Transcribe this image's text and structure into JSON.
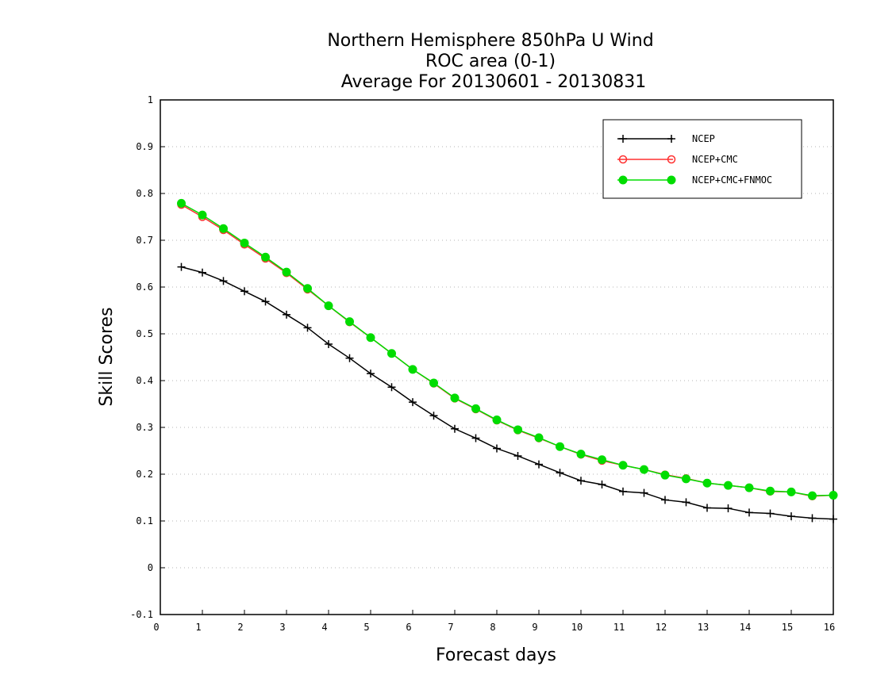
{
  "chart_data": {
    "type": "line",
    "title": [
      "Northern Hemisphere 850hPa U Wind",
      "ROC area (0-1)",
      "Average For 20130601 - 20130831"
    ],
    "xlabel": "Forecast days",
    "ylabel": "Skill Scores",
    "xlim": [
      0,
      16
    ],
    "ylim": [
      -0.1,
      1
    ],
    "x_ticks": [
      "0",
      "1",
      "2",
      "3",
      "4",
      "5",
      "6",
      "7",
      "8",
      "9",
      "10",
      "11",
      "12",
      "13",
      "14",
      "15",
      "16"
    ],
    "y_ticks": [
      "-0.1",
      "0",
      "0.1",
      "0.2",
      "0.3",
      "0.4",
      "0.5",
      "0.6",
      "0.7",
      "0.8",
      "0.9",
      "1"
    ],
    "grid": true,
    "legend_position": "top-right",
    "x": [
      0.5,
      1,
      1.5,
      2,
      2.5,
      3,
      3.5,
      4,
      4.5,
      5,
      5.5,
      6,
      6.5,
      7,
      7.5,
      8,
      8.5,
      9,
      9.5,
      10,
      10.5,
      11,
      11.5,
      12,
      12.5,
      13,
      13.5,
      14,
      14.5,
      15,
      15.5,
      16
    ],
    "series": [
      {
        "name": "NCEP",
        "color": "#000000",
        "marker": "plus",
        "values": [
          0.643,
          0.631,
          0.613,
          0.591,
          0.569,
          0.541,
          0.513,
          0.478,
          0.448,
          0.415,
          0.386,
          0.354,
          0.325,
          0.297,
          0.277,
          0.255,
          0.239,
          0.221,
          0.203,
          0.186,
          0.178,
          0.163,
          0.16,
          0.145,
          0.14,
          0.128,
          0.127,
          0.118,
          0.116,
          0.11,
          0.106,
          0.104
        ]
      },
      {
        "name": "NCEP+CMC",
        "color": "#ff3030",
        "marker": "open-circle",
        "values": [
          0.776,
          0.75,
          0.722,
          0.691,
          0.661,
          0.63,
          0.595,
          0.56,
          0.525,
          0.492,
          0.458,
          0.424,
          0.394,
          0.362,
          0.339,
          0.315,
          0.294,
          0.277,
          0.259,
          0.242,
          0.229,
          0.219,
          0.21,
          0.199,
          0.191,
          0.181,
          0.176,
          0.171,
          0.163,
          0.162,
          0.153,
          0.155
        ]
      },
      {
        "name": "NCEP+CMC+FNMOC",
        "color": "#00dd00",
        "marker": "filled-circle",
        "values": [
          0.779,
          0.754,
          0.725,
          0.694,
          0.664,
          0.632,
          0.597,
          0.56,
          0.526,
          0.492,
          0.458,
          0.424,
          0.395,
          0.363,
          0.34,
          0.316,
          0.295,
          0.278,
          0.259,
          0.243,
          0.231,
          0.219,
          0.21,
          0.198,
          0.19,
          0.181,
          0.176,
          0.171,
          0.164,
          0.162,
          0.154,
          0.155
        ]
      }
    ]
  }
}
